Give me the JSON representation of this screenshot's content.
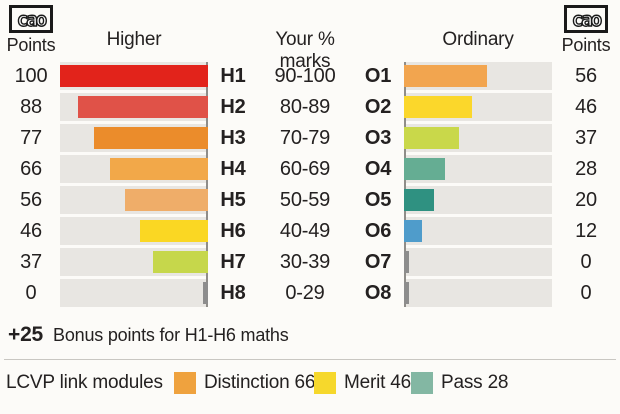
{
  "header": {
    "left_logo_text": "cao",
    "left_points_label": "Points",
    "higher_label": "Higher",
    "marks_label": "Your % marks",
    "ordinary_label": "Ordinary",
    "right_logo_text": "cao",
    "right_points_label": "Points"
  },
  "chart_data": {
    "type": "bar",
    "title": "CAO points for Leaving Certificate grades",
    "orientation": "horizontal",
    "axis_max": 100,
    "higher_series_label": "Higher",
    "ordinary_series_label": "Ordinary",
    "track_color": "#e8e6e2",
    "zero_bar_color": "#8d8d8d",
    "rows": [
      {
        "higher_points": "100",
        "h_grade": "H1",
        "range": "90-100",
        "o_grade": "O1",
        "ordinary_points": "56",
        "h_value": 100,
        "o_value": 56,
        "h_color": "#e2231b",
        "o_color": "#f2a54f"
      },
      {
        "higher_points": "88",
        "h_grade": "H2",
        "range": "80-89",
        "o_grade": "O2",
        "ordinary_points": "46",
        "h_value": 88,
        "o_value": 46,
        "h_color": "#e05248",
        "o_color": "#fbd72b"
      },
      {
        "higher_points": "77",
        "h_grade": "H3",
        "range": "70-79",
        "o_grade": "O3",
        "ordinary_points": "37",
        "h_value": 77,
        "o_value": 37,
        "h_color": "#eb8c2b",
        "o_color": "#c9d84a"
      },
      {
        "higher_points": "66",
        "h_grade": "H4",
        "range": "60-69",
        "o_grade": "O4",
        "ordinary_points": "28",
        "h_value": 66,
        "o_value": 28,
        "h_color": "#f2a849",
        "o_color": "#65ad93"
      },
      {
        "higher_points": "56",
        "h_grade": "H5",
        "range": "50-59",
        "o_grade": "O5",
        "ordinary_points": "20",
        "h_value": 56,
        "o_value": 20,
        "h_color": "#efad69",
        "o_color": "#2f9181"
      },
      {
        "higher_points": "46",
        "h_grade": "H6",
        "range": "40-49",
        "o_grade": "O6",
        "ordinary_points": "12",
        "h_value": 46,
        "o_value": 12,
        "h_color": "#fad723",
        "o_color": "#4f9ccb"
      },
      {
        "higher_points": "37",
        "h_grade": "H7",
        "range": "30-39",
        "o_grade": "O7",
        "ordinary_points": "0",
        "h_value": 37,
        "o_value": 0,
        "h_color": "#c6d74b",
        "o_color": "#8d8d8d"
      },
      {
        "higher_points": "0",
        "h_grade": "H8",
        "range": "0-29",
        "o_grade": "O8",
        "ordinary_points": "0",
        "h_value": 0,
        "o_value": 0,
        "h_color": "#8d8d8d",
        "o_color": "#8d8d8d"
      }
    ]
  },
  "bonus": {
    "value": "+25",
    "text": "Bonus points for H1-H6 maths"
  },
  "legend": {
    "title": "LCVP link modules",
    "items": [
      {
        "label": "Distinction 66",
        "color": "#efa23e"
      },
      {
        "label": "Merit 46",
        "color": "#f6d82c"
      },
      {
        "label": "Pass 28",
        "color": "#83b7a3"
      }
    ]
  }
}
